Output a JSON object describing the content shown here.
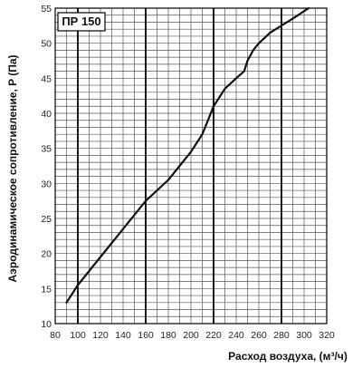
{
  "chart_data": {
    "type": "line",
    "title": "ПР 150",
    "xlabel": "Расход воздуха, (м³/ч)",
    "ylabel": "Аэродинамическое сопротивление, P (Па)",
    "xlim": [
      80,
      320
    ],
    "ylim": [
      10,
      55
    ],
    "x_ticks": [
      80,
      100,
      120,
      140,
      160,
      180,
      200,
      220,
      240,
      260,
      280,
      300,
      320
    ],
    "y_ticks": [
      10,
      15,
      20,
      25,
      30,
      35,
      40,
      45,
      50,
      55
    ],
    "x_minor_step": 10,
    "y_minor_step": 1,
    "x_major_lines": [
      100,
      160,
      220,
      280
    ],
    "grid": true,
    "series": [
      {
        "x": [
          90,
          100,
          120,
          140,
          160,
          180,
          200,
          210,
          215,
          220,
          230,
          240,
          247,
          250,
          255,
          260,
          270,
          280,
          290,
          304
        ],
        "y": [
          13,
          15.5,
          19.5,
          23.5,
          27.5,
          30.5,
          34.5,
          37,
          39,
          41,
          43.5,
          45,
          46,
          47.5,
          49,
          50,
          51.5,
          52.5,
          53.5,
          55
        ],
        "color": "#111111"
      }
    ]
  },
  "colors": {
    "grid": "#555555",
    "major": "#000000",
    "line": "#111111",
    "background": "#ffffff"
  }
}
